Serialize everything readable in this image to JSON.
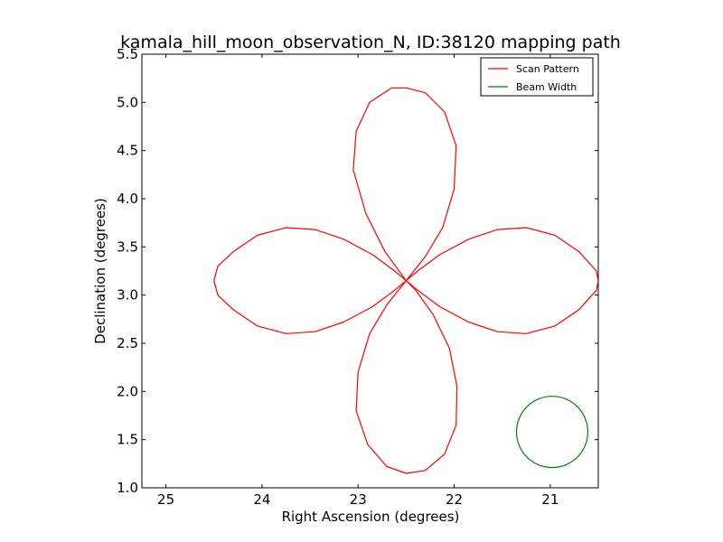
{
  "chart_data": {
    "type": "line",
    "title": "kamala_hill_moon_observation_N, ID:38120 mapping path",
    "xlabel": "Right Ascension (degrees)",
    "ylabel": "Declination (degrees)",
    "xlim": [
      25.25,
      20.5
    ],
    "ylim": [
      1.0,
      5.5
    ],
    "x_inverted": true,
    "xticks": [
      25,
      24,
      23,
      22,
      21
    ],
    "xtick_labels": [
      "25",
      "24",
      "23",
      "22",
      "21"
    ],
    "yticks": [
      1.0,
      1.5,
      2.0,
      2.5,
      3.0,
      3.5,
      4.0,
      4.5,
      5.0,
      5.5
    ],
    "ytick_labels": [
      "1.0",
      "1.5",
      "2.0",
      "2.5",
      "3.0",
      "3.5",
      "4.0",
      "4.5",
      "5.0",
      "5.5"
    ],
    "grid": false,
    "legend_position": "top-right",
    "series": [
      {
        "name": "Scan Pattern",
        "color": "#ff0000",
        "shape": "four-petal rose curve",
        "center": [
          22.5,
          3.15
        ],
        "horizontal_petal_extent_ra": [
          20.5,
          24.5
        ],
        "vertical_petal_extent_dec": [
          1.15,
          5.15
        ],
        "petal_half_width": 0.55,
        "points": [
          [
            24.5,
            3.15
          ],
          [
            24.46,
            3.3
          ],
          [
            24.3,
            3.45
          ],
          [
            24.05,
            3.62
          ],
          [
            23.75,
            3.7
          ],
          [
            23.45,
            3.68
          ],
          [
            23.15,
            3.58
          ],
          [
            22.85,
            3.42
          ],
          [
            22.62,
            3.25
          ],
          [
            22.5,
            3.15
          ],
          [
            22.38,
            3.05
          ],
          [
            22.15,
            2.88
          ],
          [
            21.85,
            2.72
          ],
          [
            21.55,
            2.62
          ],
          [
            21.25,
            2.6
          ],
          [
            20.95,
            2.68
          ],
          [
            20.7,
            2.85
          ],
          [
            20.52,
            3.05
          ],
          [
            20.5,
            3.15
          ],
          [
            20.52,
            3.25
          ],
          [
            20.7,
            3.45
          ],
          [
            20.95,
            3.62
          ],
          [
            21.25,
            3.7
          ],
          [
            21.55,
            3.68
          ],
          [
            21.85,
            3.58
          ],
          [
            22.15,
            3.42
          ],
          [
            22.38,
            3.25
          ],
          [
            22.5,
            3.15
          ],
          [
            22.62,
            3.05
          ],
          [
            22.85,
            2.88
          ],
          [
            23.15,
            2.72
          ],
          [
            23.45,
            2.62
          ],
          [
            23.75,
            2.6
          ],
          [
            24.05,
            2.68
          ],
          [
            24.3,
            2.85
          ],
          [
            24.46,
            3.0
          ],
          [
            24.5,
            3.15
          ]
        ],
        "points_vertical": [
          [
            22.5,
            3.15
          ],
          [
            22.72,
            3.45
          ],
          [
            22.92,
            3.85
          ],
          [
            23.05,
            4.3
          ],
          [
            23.02,
            4.7
          ],
          [
            22.88,
            5.0
          ],
          [
            22.65,
            5.15
          ],
          [
            22.5,
            5.15
          ],
          [
            22.3,
            5.1
          ],
          [
            22.1,
            4.9
          ],
          [
            21.98,
            4.55
          ],
          [
            22.0,
            4.1
          ],
          [
            22.12,
            3.7
          ],
          [
            22.3,
            3.4
          ],
          [
            22.5,
            3.15
          ],
          [
            22.7,
            2.9
          ],
          [
            22.88,
            2.6
          ],
          [
            23.0,
            2.2
          ],
          [
            23.02,
            1.8
          ],
          [
            22.9,
            1.45
          ],
          [
            22.7,
            1.22
          ],
          [
            22.5,
            1.15
          ],
          [
            22.3,
            1.18
          ],
          [
            22.1,
            1.35
          ],
          [
            21.98,
            1.65
          ],
          [
            21.97,
            2.05
          ],
          [
            22.05,
            2.45
          ],
          [
            22.22,
            2.8
          ],
          [
            22.4,
            3.05
          ],
          [
            22.5,
            3.15
          ]
        ]
      },
      {
        "name": "Beam Width",
        "color": "#008000",
        "shape": "circle",
        "center": [
          20.98,
          1.58
        ],
        "radius_dec": 0.37
      }
    ]
  }
}
